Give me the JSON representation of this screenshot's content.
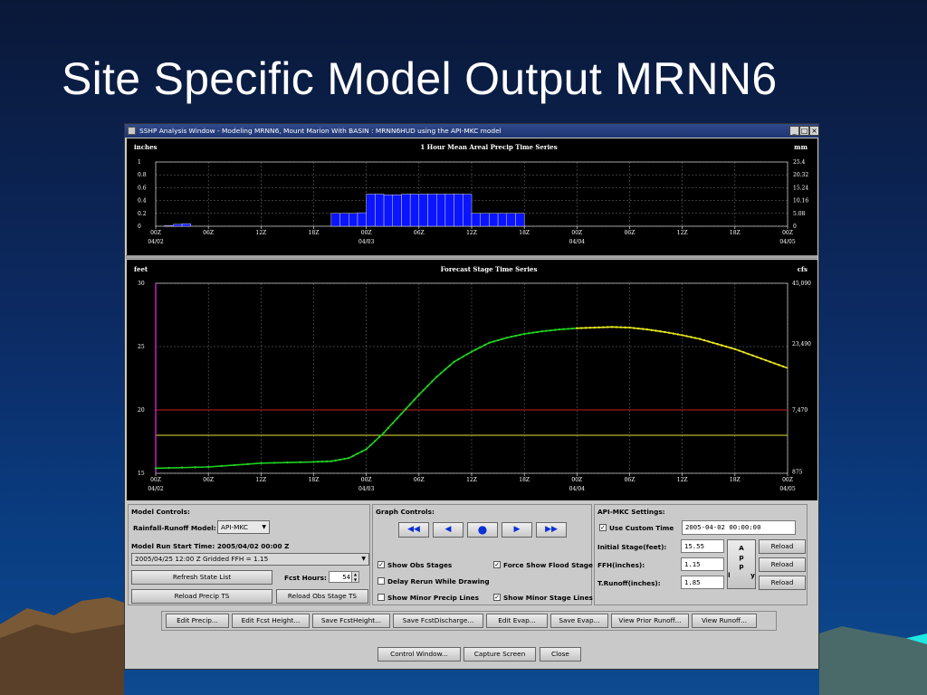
{
  "slide": {
    "title": "Site Specific Model Output MRNN6"
  },
  "window": {
    "title": "SSHP Analysis Window - Modeling MRNN6, Mount Marion With BASIN : MRNN6HUD using the API-MKC model",
    "buttons": [
      "minimize",
      "maximize",
      "close"
    ]
  },
  "precip_chart": {
    "title": "1 Hour Mean Areal Precip Time Series",
    "ylabel_left": "inches",
    "ylabel_right": "mm",
    "left_ticks": [
      "1",
      "0.8",
      "0.6",
      "0.4",
      "0.2",
      "0"
    ],
    "right_ticks": [
      "25.4",
      "20.32",
      "15.24",
      "10.16",
      "5.08",
      "0"
    ]
  },
  "stage_chart": {
    "title": "Forecast Stage Time Series",
    "ylabel_left": "feet",
    "ylabel_right": "cfs",
    "left_ticks": [
      "30",
      "25",
      "20",
      "15"
    ],
    "right_ticks": [
      "45,090",
      "23,490",
      "7,470",
      "875"
    ]
  },
  "time_axis": {
    "hours": [
      "00Z",
      "06Z",
      "12Z",
      "18Z",
      "00Z",
      "06Z",
      "12Z",
      "18Z",
      "00Z",
      "06Z",
      "12Z",
      "18Z",
      "00Z"
    ],
    "dates": [
      "04/02",
      "04/03",
      "04/04",
      "04/05"
    ]
  },
  "chart_data": [
    {
      "type": "bar",
      "title": "1 Hour Mean Areal Precip Time Series",
      "xlabel": "",
      "ylabel": "inches",
      "ylabel_right": "mm",
      "x_unit": "hours from 2005-04-02 00Z",
      "xlim": [
        0,
        72
      ],
      "ylim": [
        0,
        1
      ],
      "bars": [
        {
          "start": 1,
          "end": 2,
          "value": 0.01
        },
        {
          "start": 2,
          "end": 3,
          "value": 0.03
        },
        {
          "start": 3,
          "end": 4,
          "value": 0.04
        },
        {
          "start": 20,
          "end": 21,
          "value": 0.2
        },
        {
          "start": 21,
          "end": 22,
          "value": 0.2
        },
        {
          "start": 22,
          "end": 23,
          "value": 0.2
        },
        {
          "start": 23,
          "end": 24,
          "value": 0.21
        },
        {
          "start": 24,
          "end": 25,
          "value": 0.5
        },
        {
          "start": 25,
          "end": 26,
          "value": 0.5
        },
        {
          "start": 26,
          "end": 27,
          "value": 0.49
        },
        {
          "start": 27,
          "end": 28,
          "value": 0.49
        },
        {
          "start": 28,
          "end": 29,
          "value": 0.5
        },
        {
          "start": 29,
          "end": 30,
          "value": 0.5
        },
        {
          "start": 30,
          "end": 31,
          "value": 0.5
        },
        {
          "start": 31,
          "end": 32,
          "value": 0.5
        },
        {
          "start": 32,
          "end": 33,
          "value": 0.5
        },
        {
          "start": 33,
          "end": 34,
          "value": 0.5
        },
        {
          "start": 34,
          "end": 35,
          "value": 0.5
        },
        {
          "start": 35,
          "end": 36,
          "value": 0.5
        },
        {
          "start": 36,
          "end": 37,
          "value": 0.2
        },
        {
          "start": 37,
          "end": 38,
          "value": 0.2
        },
        {
          "start": 38,
          "end": 39,
          "value": 0.2
        },
        {
          "start": 39,
          "end": 40,
          "value": 0.2
        },
        {
          "start": 40,
          "end": 41,
          "value": 0.2
        },
        {
          "start": 41,
          "end": 42,
          "value": 0.2
        }
      ],
      "color": "#0a14ff",
      "grid": true
    },
    {
      "type": "line",
      "title": "Forecast Stage Time Series",
      "xlabel": "",
      "ylabel": "feet",
      "ylabel_right": "cfs",
      "x_unit": "hours from 2005-04-02 00Z",
      "xlim": [
        0,
        72
      ],
      "ylim": [
        15,
        30
      ],
      "series": [
        {
          "color": "#1fd11f",
          "x": [
            0,
            6,
            12,
            18,
            20,
            22,
            24,
            26,
            28,
            30,
            32,
            34,
            36,
            38,
            40,
            42,
            44,
            46,
            48
          ],
          "y": [
            15.4,
            15.5,
            15.8,
            15.9,
            15.95,
            16.2,
            16.9,
            18.2,
            19.7,
            21.2,
            22.6,
            23.8,
            24.6,
            25.3,
            25.7,
            26.0,
            26.2,
            26.35,
            26.45
          ]
        },
        {
          "color": "#e8e820",
          "x": [
            48,
            50,
            52,
            54,
            56,
            58,
            60,
            62,
            64,
            66,
            68,
            70,
            72
          ],
          "y": [
            26.45,
            26.5,
            26.55,
            26.5,
            26.35,
            26.15,
            25.9,
            25.6,
            25.2,
            24.8,
            24.3,
            23.8,
            23.3
          ]
        }
      ],
      "reference_lines": [
        {
          "y": 20,
          "color": "#a01818"
        },
        {
          "y": 18,
          "color": "#b8b830"
        }
      ],
      "marker_x": 0,
      "marker_color": "#d020d0",
      "grid": true
    }
  ],
  "model_controls": {
    "title": "Model Controls:",
    "rr_label": "Rainfall-Runoff Model:",
    "rr_value": "API-MKC",
    "start_label": "Model Run Start Time: 2005/04/02 00:00 Z",
    "ffh_value": "2005/04/25 12:00 Z Gridded FFH = 1.15",
    "refresh": "Refresh State List",
    "fcst_hours_label": "Fcst Hours:",
    "fcst_hours": "54",
    "reload_precip": "Reload Precip TS",
    "reload_obs": "Reload Obs Stage TS"
  },
  "graph_controls": {
    "title": "Graph Controls:",
    "checks": [
      {
        "label": "Show Obs Stages",
        "checked": true
      },
      {
        "label": "Force Show Flood Stage",
        "checked": true
      },
      {
        "label": "Delay Rerun While Drawing",
        "checked": false
      },
      {
        "label": "Show Minor Precip Lines",
        "checked": false
      },
      {
        "label": "Show Minor Stage Lines",
        "checked": true
      }
    ],
    "nav": [
      "◀◀",
      "◀",
      "●",
      "▶",
      "▶▶"
    ]
  },
  "api_settings": {
    "title": "API-MKC Settings:",
    "custom_label": "Use Custom Time",
    "custom_checked": true,
    "custom_time": "2005-04-02 00:00:00",
    "stage_label": "Initial Stage(feet):",
    "stage": "15.55",
    "ffh_label": "FFH(inches):",
    "ffh": "1.15",
    "runoff_label": "T.Runoff(inches):",
    "runoff": "1.85",
    "apply": "A p p l y",
    "reload": "Reload"
  },
  "actions": [
    "Edit Precip...",
    "Edit Fcst Height...",
    "Save FcstHeight...",
    "Save FcstDischarge...",
    "Edit Evap...",
    "Save Evap...",
    "View Prior Runoff...",
    "View Runoff..."
  ],
  "bottom": {
    "control": "Control Window...",
    "capture": "Capture Screen",
    "close": "Close"
  }
}
